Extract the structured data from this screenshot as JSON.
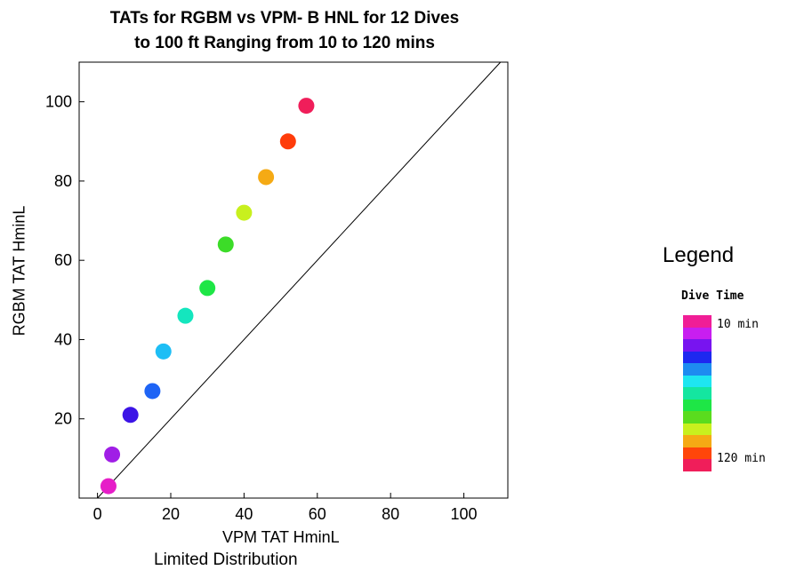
{
  "chart_data": {
    "type": "scatter",
    "title_lines": [
      "TATs for RGBM vs VPM- B HNL for 12 Dives",
      "to 100 ft Ranging from 10 to 120 mins"
    ],
    "xlabel": "VPM TAT HminL",
    "ylabel": "RGBM TAT HminL",
    "xlim": [
      -5,
      112
    ],
    "ylim": [
      0,
      110
    ],
    "x_ticks": [
      0,
      20,
      40,
      60,
      80,
      100
    ],
    "y_ticks": [
      20,
      40,
      60,
      80,
      100
    ],
    "reference_line": "y = x",
    "points": [
      {
        "x": 3,
        "y": 3,
        "color": "#e61ec8"
      },
      {
        "x": 4,
        "y": 11,
        "color": "#a01ee6"
      },
      {
        "x": 9,
        "y": 21,
        "color": "#3c14e6"
      },
      {
        "x": 15,
        "y": 27,
        "color": "#1e64f5"
      },
      {
        "x": 18,
        "y": 37,
        "color": "#1ebef5"
      },
      {
        "x": 24,
        "y": 46,
        "color": "#14e6be"
      },
      {
        "x": 30,
        "y": 53,
        "color": "#1ee646"
      },
      {
        "x": 35,
        "y": 64,
        "color": "#3cdc28"
      },
      {
        "x": 40,
        "y": 72,
        "color": "#c8f01e"
      },
      {
        "x": 46,
        "y": 81,
        "color": "#f5aa14"
      },
      {
        "x": 52,
        "y": 90,
        "color": "#ff3c0a"
      },
      {
        "x": 57,
        "y": 99,
        "color": "#f01e5a"
      }
    ]
  },
  "legend": {
    "title": "Legend",
    "subtitle": "Dive Time",
    "top_label": "10 min",
    "bottom_label": "120 min",
    "colors": [
      "#f01e96",
      "#c81ef0",
      "#7814f0",
      "#1e28f0",
      "#1e8cf0",
      "#1ee6f0",
      "#14e6a0",
      "#1ee646",
      "#5adc1e",
      "#c8f01e",
      "#f5aa14",
      "#ff460a",
      "#f01e5a"
    ]
  },
  "footer": "Limited Distribution"
}
